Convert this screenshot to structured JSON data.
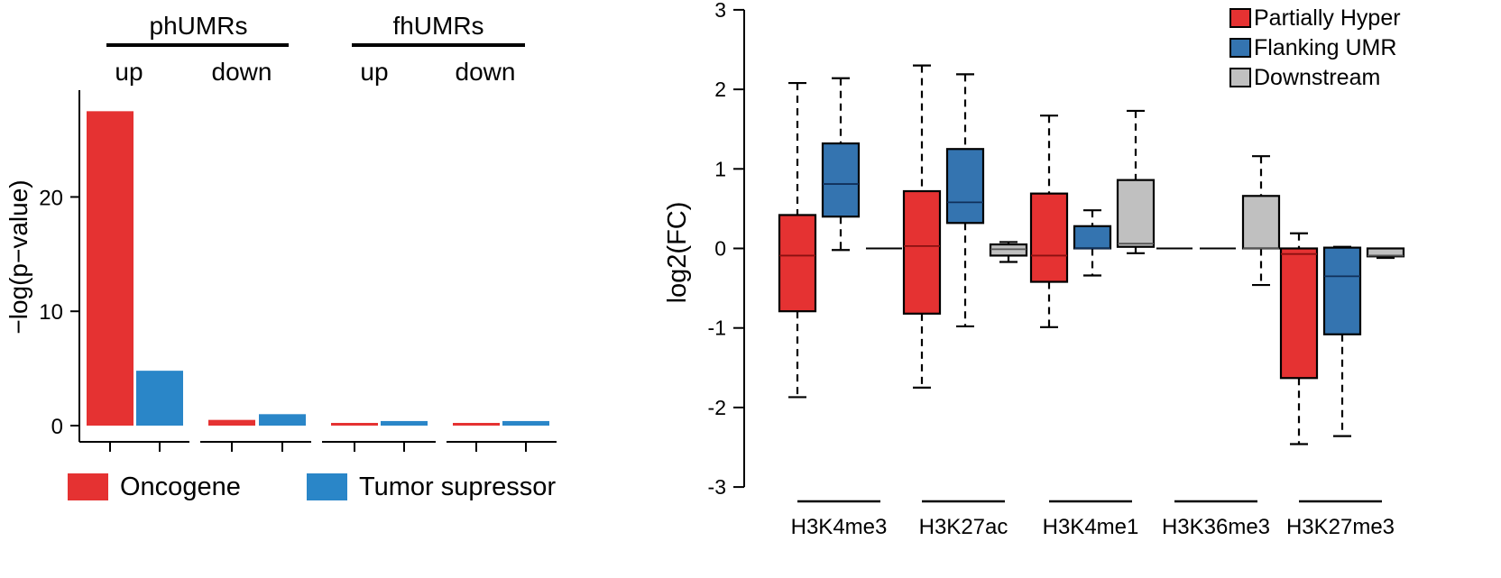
{
  "colors": {
    "oncogene": "#e53232",
    "tumor_suppressor": "#2a86c8",
    "partially_hyper": "#e53232",
    "flanking_umr": "#3474b0",
    "downstream": "#c0c0c0"
  },
  "chart_data": [
    {
      "type": "bar",
      "ylabel": "−log(p−value)",
      "ylim": [
        0,
        28
      ],
      "yticks": [
        0,
        10,
        20
      ],
      "grid": false,
      "groups": [
        {
          "label": "phUMRs",
          "subgroups": [
            "up",
            "down"
          ]
        },
        {
          "label": "fhUMRs",
          "subgroups": [
            "up",
            "down"
          ]
        }
      ],
      "categories": [
        "phUMRs up",
        "phUMRs down",
        "fhUMRs up",
        "fhUMRs down"
      ],
      "series": [
        {
          "name": "Oncogene",
          "values": [
            27.5,
            0.5,
            0.1,
            0.1
          ]
        },
        {
          "name": "Tumor supressor",
          "values": [
            4.8,
            1.0,
            0.4,
            0.4
          ]
        }
      ],
      "legend": "bottom"
    },
    {
      "type": "box",
      "ylabel": "log2(FC)",
      "ylim": [
        -3,
        3
      ],
      "yticks": [
        3,
        2,
        1,
        0,
        -1,
        -2,
        -3
      ],
      "categories": [
        "H3K4me3",
        "H3K27ac",
        "H3K4me1",
        "H3K36me3",
        "H3K27me3"
      ],
      "legend": "top-right",
      "series": [
        {
          "name": "Partially Hyper",
          "boxes": [
            {
              "min": -1.87,
              "q1": -0.79,
              "median": -0.09,
              "q3": 0.42,
              "max": 2.08
            },
            {
              "min": -1.75,
              "q1": -0.82,
              "median": 0.03,
              "q3": 0.72,
              "max": 2.3
            },
            {
              "min": -0.99,
              "q1": -0.42,
              "median": -0.09,
              "q3": 0.69,
              "max": 1.67
            },
            {
              "min": 0,
              "q1": 0,
              "median": 0,
              "q3": 0,
              "max": 0
            },
            {
              "min": -2.46,
              "q1": -1.63,
              "median": -0.07,
              "q3": 0,
              "max": 0.19
            }
          ]
        },
        {
          "name": "Flanking UMR",
          "boxes": [
            {
              "min": -0.02,
              "q1": 0.4,
              "median": 0.81,
              "q3": 1.32,
              "max": 2.14
            },
            {
              "min": -0.98,
              "q1": 0.32,
              "median": 0.58,
              "q3": 1.25,
              "max": 2.19
            },
            {
              "min": -0.34,
              "q1": 0,
              "median": 0,
              "q3": 0.28,
              "max": 0.48
            },
            {
              "min": 0,
              "q1": 0,
              "median": 0,
              "q3": 0,
              "max": 0
            },
            {
              "min": -2.36,
              "q1": -1.08,
              "median": -0.35,
              "q3": 0.01,
              "max": 0.02
            }
          ]
        },
        {
          "name": "Downstream",
          "boxes": [
            {
              "min": 0,
              "q1": 0,
              "median": 0,
              "q3": 0,
              "max": 0
            },
            {
              "min": -0.17,
              "q1": -0.09,
              "median": -0.01,
              "q3": 0.05,
              "max": 0.08
            },
            {
              "min": -0.06,
              "q1": 0.02,
              "median": 0.06,
              "q3": 0.86,
              "max": 1.73
            },
            {
              "min": -0.46,
              "q1": 0,
              "median": 0,
              "q3": 0.66,
              "max": 1.16
            },
            {
              "min": -0.12,
              "q1": -0.1,
              "median": -0.09,
              "q3": 0,
              "max": 0
            }
          ]
        }
      ]
    }
  ]
}
